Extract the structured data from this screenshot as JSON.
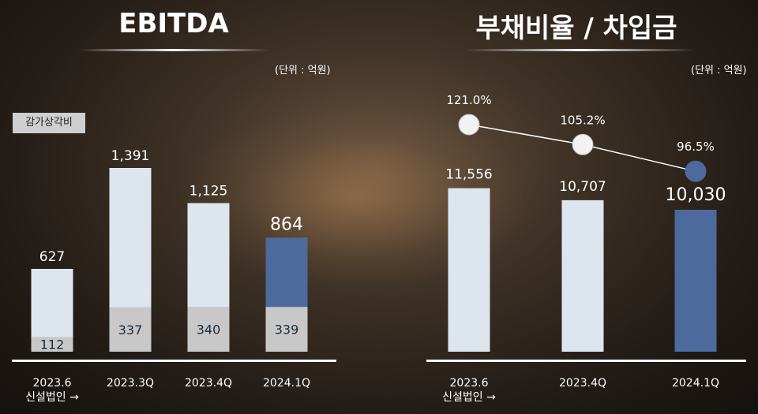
{
  "colors": {
    "bar_light": "#dde6ee",
    "bar_accent": "#4d6a9c",
    "bar_gray": "#c8c8c8",
    "line": "#ffffff",
    "text": "#ffffff",
    "baseline": "#ffffff"
  },
  "left_panel": {
    "title": "EBITDA",
    "unit": "(단위 : 억원)",
    "legend_label": "감가상각비"
  },
  "right_panel": {
    "title": "부채비율 / 차입금",
    "unit": "(단위 : 억원)"
  },
  "chart_data": [
    {
      "type": "bar",
      "title": "EBITDA",
      "categories": [
        "2023.6\n신설법인 →",
        "2023.3Q",
        "2023.4Q",
        "2024.1Q"
      ],
      "series": [
        {
          "name": "EBITDA",
          "values": [
            627,
            1391,
            1125,
            864
          ]
        },
        {
          "name": "감가상각비",
          "values": [
            112,
            337,
            340,
            339
          ]
        }
      ],
      "highlight_index": 3,
      "ylim": [
        0,
        1500
      ],
      "grid": false
    },
    {
      "type": "bar",
      "title": "부채비율 / 차입금",
      "categories": [
        "2023.6\n신설법인 →",
        "2023.4Q",
        "2024.1Q"
      ],
      "series": [
        {
          "name": "차입금",
          "values": [
            11556,
            10707,
            10030
          ]
        },
        {
          "name": "부채비율",
          "type": "line",
          "values": [
            121.0,
            105.2,
            96.5
          ],
          "labels": [
            "121.0%",
            "105.2%",
            "96.5%"
          ]
        }
      ],
      "highlight_index": 2,
      "ylim_bar": [
        0,
        12500
      ],
      "ylim_line": [
        80,
        130
      ],
      "grid": false
    }
  ]
}
